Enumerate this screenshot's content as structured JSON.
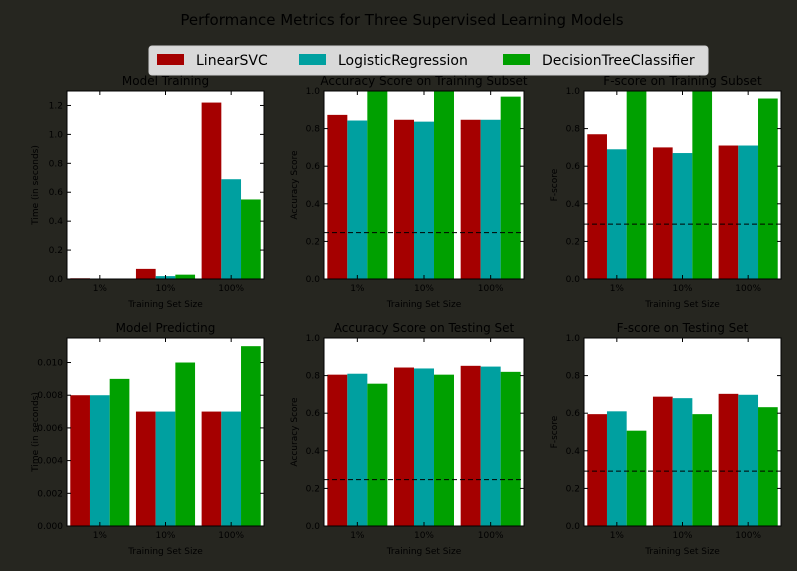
{
  "suptitle": "Performance Metrics for Three Supervised Learning Models",
  "legend": {
    "placement": "top-center",
    "entries": [
      "LinearSVC",
      "LogisticRegression",
      "DecisionTreeClassifier"
    ]
  },
  "colors": {
    "figure_background": "#262620",
    "axes_background": "#ffffff",
    "LinearSVC": "#a50000",
    "LogisticRegression": "#00a0a0",
    "DecisionTreeClassifier": "#00a000",
    "benchmark_line": "#000000"
  },
  "chart_data": [
    {
      "type": "bar",
      "title": "Model Training",
      "xlabel": "Training Set Size",
      "ylabel": "Time (in seconds)",
      "categories": [
        "1%",
        "10%",
        "100%"
      ],
      "ylim": [
        0,
        1.3
      ],
      "yticks": [
        "0.0",
        "0.2",
        "0.4",
        "0.6",
        "0.8",
        "1.0",
        "1.2"
      ],
      "series": [
        {
          "name": "LinearSVC",
          "values": [
            0.005,
            0.07,
            1.22
          ]
        },
        {
          "name": "LogisticRegression",
          "values": [
            0.002,
            0.02,
            0.69
          ]
        },
        {
          "name": "DecisionTreeClassifier",
          "values": [
            0.002,
            0.03,
            0.55
          ]
        }
      ]
    },
    {
      "type": "bar",
      "title": "Accuracy Score on Training Subset",
      "xlabel": "Training Set Size",
      "ylabel": "Accuracy Score",
      "categories": [
        "1%",
        "10%",
        "100%"
      ],
      "ylim": [
        0,
        1.0
      ],
      "yticks": [
        "0.0",
        "0.2",
        "0.4",
        "0.6",
        "0.8",
        "1.0"
      ],
      "benchmark": 0.247,
      "series": [
        {
          "name": "LinearSVC",
          "values": [
            0.873,
            0.847,
            0.847
          ]
        },
        {
          "name": "LogisticRegression",
          "values": [
            0.843,
            0.837,
            0.847
          ]
        },
        {
          "name": "DecisionTreeClassifier",
          "values": [
            1.0,
            1.0,
            0.97
          ]
        }
      ]
    },
    {
      "type": "bar",
      "title": "F-score on Training Subset",
      "xlabel": "Training Set Size",
      "ylabel": "F-score",
      "categories": [
        "1%",
        "10%",
        "100%"
      ],
      "ylim": [
        0,
        1.0
      ],
      "yticks": [
        "0.0",
        "0.2",
        "0.4",
        "0.6",
        "0.8",
        "1.0"
      ],
      "benchmark": 0.292,
      "series": [
        {
          "name": "LinearSVC",
          "values": [
            0.77,
            0.7,
            0.71
          ]
        },
        {
          "name": "LogisticRegression",
          "values": [
            0.69,
            0.67,
            0.71
          ]
        },
        {
          "name": "DecisionTreeClassifier",
          "values": [
            1.0,
            1.0,
            0.96
          ]
        }
      ]
    },
    {
      "type": "bar",
      "title": "Model Predicting",
      "xlabel": "Training Set Size",
      "ylabel": "Time (in seconds)",
      "categories": [
        "1%",
        "10%",
        "100%"
      ],
      "ylim": [
        0,
        0.0115
      ],
      "yticks": [
        "0.000",
        "0.002",
        "0.004",
        "0.006",
        "0.008",
        "0.010"
      ],
      "series": [
        {
          "name": "LinearSVC",
          "values": [
            0.008,
            0.007,
            0.007
          ]
        },
        {
          "name": "LogisticRegression",
          "values": [
            0.008,
            0.007,
            0.007
          ]
        },
        {
          "name": "DecisionTreeClassifier",
          "values": [
            0.009,
            0.01,
            0.011
          ]
        }
      ]
    },
    {
      "type": "bar",
      "title": "Accuracy Score on Testing Set",
      "xlabel": "Training Set Size",
      "ylabel": "Accuracy Score",
      "categories": [
        "1%",
        "10%",
        "100%"
      ],
      "ylim": [
        0,
        1.0
      ],
      "yticks": [
        "0.0",
        "0.2",
        "0.4",
        "0.6",
        "0.8",
        "1.0"
      ],
      "benchmark": 0.247,
      "series": [
        {
          "name": "LinearSVC",
          "values": [
            0.805,
            0.843,
            0.852
          ]
        },
        {
          "name": "LogisticRegression",
          "values": [
            0.81,
            0.838,
            0.848
          ]
        },
        {
          "name": "DecisionTreeClassifier",
          "values": [
            0.757,
            0.805,
            0.82
          ]
        }
      ]
    },
    {
      "type": "bar",
      "title": "F-score on Testing Set",
      "xlabel": "Training Set Size",
      "ylabel": "F-score",
      "categories": [
        "1%",
        "10%",
        "100%"
      ],
      "ylim": [
        0,
        1.0
      ],
      "yticks": [
        "0.0",
        "0.2",
        "0.4",
        "0.6",
        "0.8",
        "1.0"
      ],
      "benchmark": 0.292,
      "series": [
        {
          "name": "LinearSVC",
          "values": [
            0.595,
            0.688,
            0.703
          ]
        },
        {
          "name": "LogisticRegression",
          "values": [
            0.61,
            0.68,
            0.698
          ]
        },
        {
          "name": "DecisionTreeClassifier",
          "values": [
            0.507,
            0.595,
            0.632
          ]
        }
      ]
    }
  ]
}
